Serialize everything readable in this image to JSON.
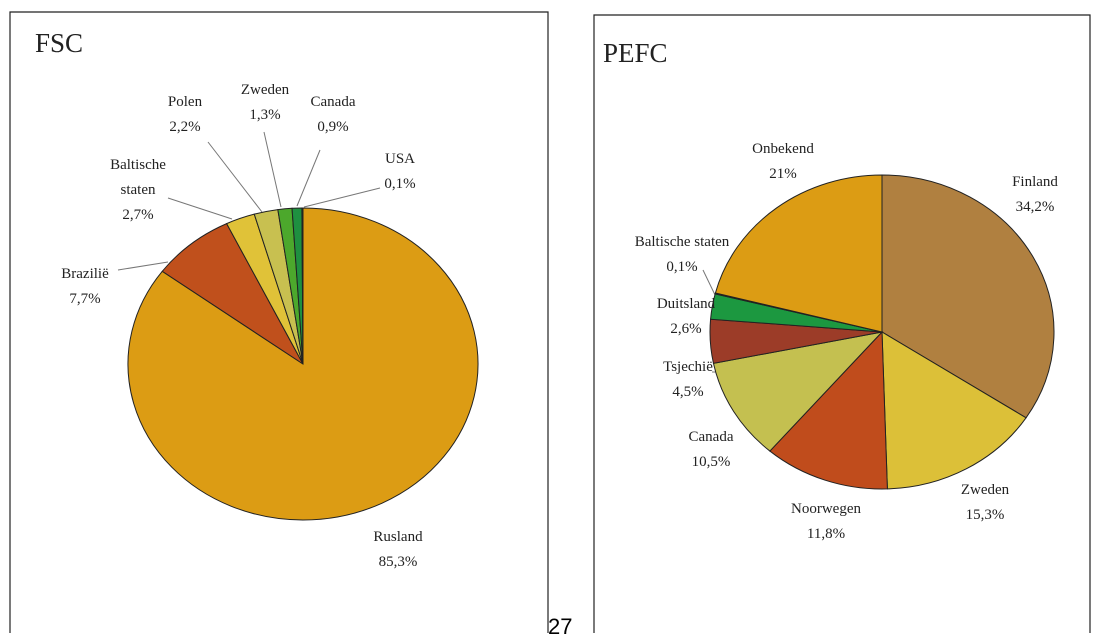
{
  "page_number": "27",
  "chart_data": [
    {
      "type": "pie",
      "title": "FSC",
      "categories": [
        "Rusland",
        "Brazilië",
        "Baltische staten",
        "Polen",
        "Zweden",
        "Canada",
        "USA"
      ],
      "values": [
        85.3,
        7.7,
        2.7,
        2.2,
        1.3,
        0.9,
        0.1
      ],
      "value_labels": [
        "85,3%",
        "7,7%",
        "2,7%",
        "2,2%",
        "1,3%",
        "0,9%",
        "0,1%"
      ],
      "colors": [
        "#dc9c14",
        "#c0501c",
        "#e0c238",
        "#c8c050",
        "#4ca82c",
        "#1e9040",
        "#0c5c20"
      ]
    },
    {
      "type": "pie",
      "title": "PEFC",
      "categories": [
        "Finland",
        "Zweden",
        "Noorwegen",
        "Canada",
        "Tsjechië",
        "Duitsland",
        "Baltische staten",
        "Onbekend"
      ],
      "values": [
        34.2,
        15.3,
        11.8,
        10.5,
        4.5,
        2.6,
        0.1,
        21
      ],
      "value_labels": [
        "34,2%",
        "15,3%",
        "11,8%",
        "10,5%",
        "4,5%",
        "2,6%",
        "0,1%",
        "21%"
      ],
      "colors": [
        "#b08040",
        "#dcc038",
        "#c04c1c",
        "#c4c050",
        "#9c3c28",
        "#1c9840",
        "#6a9a40",
        "#dc9c14"
      ]
    }
  ]
}
